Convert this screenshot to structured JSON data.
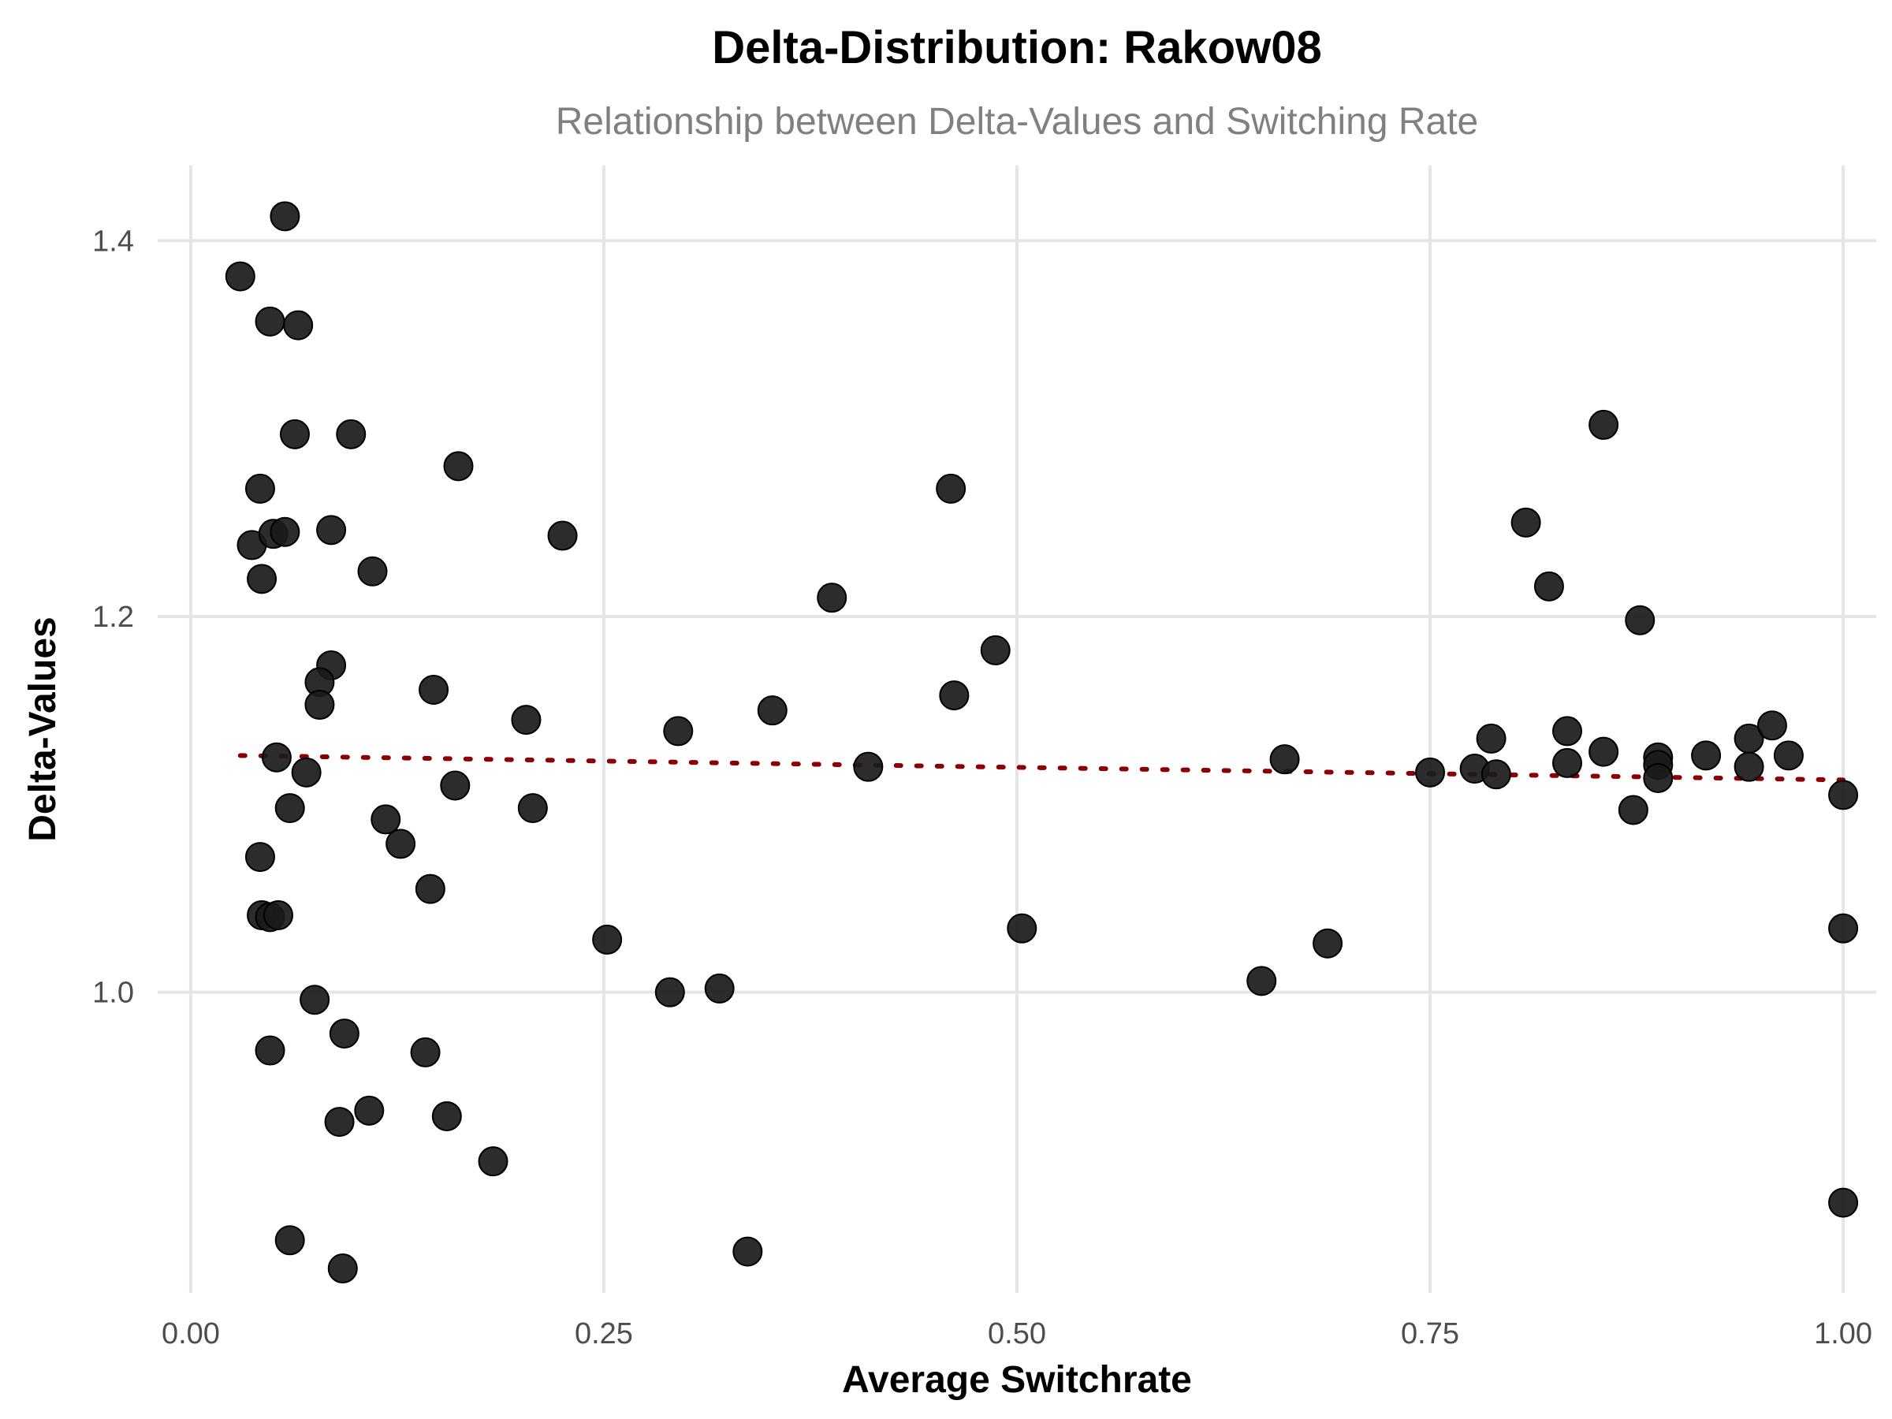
{
  "chart_data": {
    "type": "scatter",
    "title": "Delta-Distribution: Rakow08",
    "subtitle": "Relationship between Delta-Values and Switching Rate",
    "xlabel": "Average Switchrate",
    "ylabel": "Delta-Values",
    "xlim": [
      -0.02,
      1.02
    ],
    "ylim": [
      0.84,
      1.44
    ],
    "xticks": [
      0.0,
      0.25,
      0.5,
      0.75,
      1.0
    ],
    "xtick_labels": [
      "0.00",
      "0.25",
      "0.50",
      "0.75",
      "1.00"
    ],
    "yticks": [
      1.0,
      1.2,
      1.4
    ],
    "ytick_labels": [
      "1.0",
      "1.2",
      "1.4"
    ],
    "grid": true,
    "legend": "none",
    "point_color": "#1a1a1a",
    "trend_color": "#8b0000",
    "trend_line": {
      "style": "dotted",
      "x": [
        0.03,
        1.0
      ],
      "y": [
        1.126,
        1.113
      ]
    },
    "points": [
      {
        "x": 0.03,
        "y": 1.381
      },
      {
        "x": 0.057,
        "y": 1.413
      },
      {
        "x": 0.048,
        "y": 1.357
      },
      {
        "x": 0.065,
        "y": 1.355
      },
      {
        "x": 0.063,
        "y": 1.297
      },
      {
        "x": 0.097,
        "y": 1.297
      },
      {
        "x": 0.042,
        "y": 1.268
      },
      {
        "x": 0.037,
        "y": 1.238
      },
      {
        "x": 0.05,
        "y": 1.244
      },
      {
        "x": 0.057,
        "y": 1.245
      },
      {
        "x": 0.085,
        "y": 1.246
      },
      {
        "x": 0.043,
        "y": 1.22
      },
      {
        "x": 0.11,
        "y": 1.224
      },
      {
        "x": 0.162,
        "y": 1.28
      },
      {
        "x": 0.225,
        "y": 1.243
      },
      {
        "x": 0.085,
        "y": 1.174
      },
      {
        "x": 0.078,
        "y": 1.165
      },
      {
        "x": 0.078,
        "y": 1.153
      },
      {
        "x": 0.147,
        "y": 1.161
      },
      {
        "x": 0.203,
        "y": 1.145
      },
      {
        "x": 0.052,
        "y": 1.125
      },
      {
        "x": 0.07,
        "y": 1.117
      },
      {
        "x": 0.06,
        "y": 1.098
      },
      {
        "x": 0.16,
        "y": 1.11
      },
      {
        "x": 0.207,
        "y": 1.098
      },
      {
        "x": 0.118,
        "y": 1.092
      },
      {
        "x": 0.127,
        "y": 1.079
      },
      {
        "x": 0.042,
        "y": 1.072
      },
      {
        "x": 0.145,
        "y": 1.055
      },
      {
        "x": 0.043,
        "y": 1.041
      },
      {
        "x": 0.048,
        "y": 1.04
      },
      {
        "x": 0.053,
        "y": 1.041
      },
      {
        "x": 0.075,
        "y": 0.996
      },
      {
        "x": 0.093,
        "y": 0.978
      },
      {
        "x": 0.048,
        "y": 0.969
      },
      {
        "x": 0.142,
        "y": 0.968
      },
      {
        "x": 0.108,
        "y": 0.937
      },
      {
        "x": 0.09,
        "y": 0.931
      },
      {
        "x": 0.155,
        "y": 0.934
      },
      {
        "x": 0.183,
        "y": 0.91
      },
      {
        "x": 0.06,
        "y": 0.868
      },
      {
        "x": 0.092,
        "y": 0.853
      },
      {
        "x": 0.252,
        "y": 1.028
      },
      {
        "x": 0.29,
        "y": 1.0
      },
      {
        "x": 0.32,
        "y": 1.002
      },
      {
        "x": 0.337,
        "y": 0.862
      },
      {
        "x": 0.295,
        "y": 1.139
      },
      {
        "x": 0.352,
        "y": 1.15
      },
      {
        "x": 0.388,
        "y": 1.21
      },
      {
        "x": 0.41,
        "y": 1.12
      },
      {
        "x": 0.46,
        "y": 1.268
      },
      {
        "x": 0.462,
        "y": 1.158
      },
      {
        "x": 0.487,
        "y": 1.182
      },
      {
        "x": 0.503,
        "y": 1.034
      },
      {
        "x": 0.648,
        "y": 1.006
      },
      {
        "x": 0.662,
        "y": 1.124
      },
      {
        "x": 0.688,
        "y": 1.026
      },
      {
        "x": 0.75,
        "y": 1.117
      },
      {
        "x": 0.777,
        "y": 1.119
      },
      {
        "x": 0.787,
        "y": 1.135
      },
      {
        "x": 0.79,
        "y": 1.116
      },
      {
        "x": 0.808,
        "y": 1.25
      },
      {
        "x": 0.822,
        "y": 1.216
      },
      {
        "x": 0.833,
        "y": 1.139
      },
      {
        "x": 0.833,
        "y": 1.122
      },
      {
        "x": 0.855,
        "y": 1.302
      },
      {
        "x": 0.855,
        "y": 1.128
      },
      {
        "x": 0.873,
        "y": 1.097
      },
      {
        "x": 0.877,
        "y": 1.198
      },
      {
        "x": 0.888,
        "y": 1.125
      },
      {
        "x": 0.888,
        "y": 1.121
      },
      {
        "x": 0.888,
        "y": 1.114
      },
      {
        "x": 0.917,
        "y": 1.126
      },
      {
        "x": 0.943,
        "y": 1.135
      },
      {
        "x": 0.943,
        "y": 1.12
      },
      {
        "x": 0.957,
        "y": 1.142
      },
      {
        "x": 0.967,
        "y": 1.126
      },
      {
        "x": 1.0,
        "y": 1.105
      },
      {
        "x": 1.0,
        "y": 1.034
      },
      {
        "x": 1.0,
        "y": 0.888
      }
    ]
  }
}
